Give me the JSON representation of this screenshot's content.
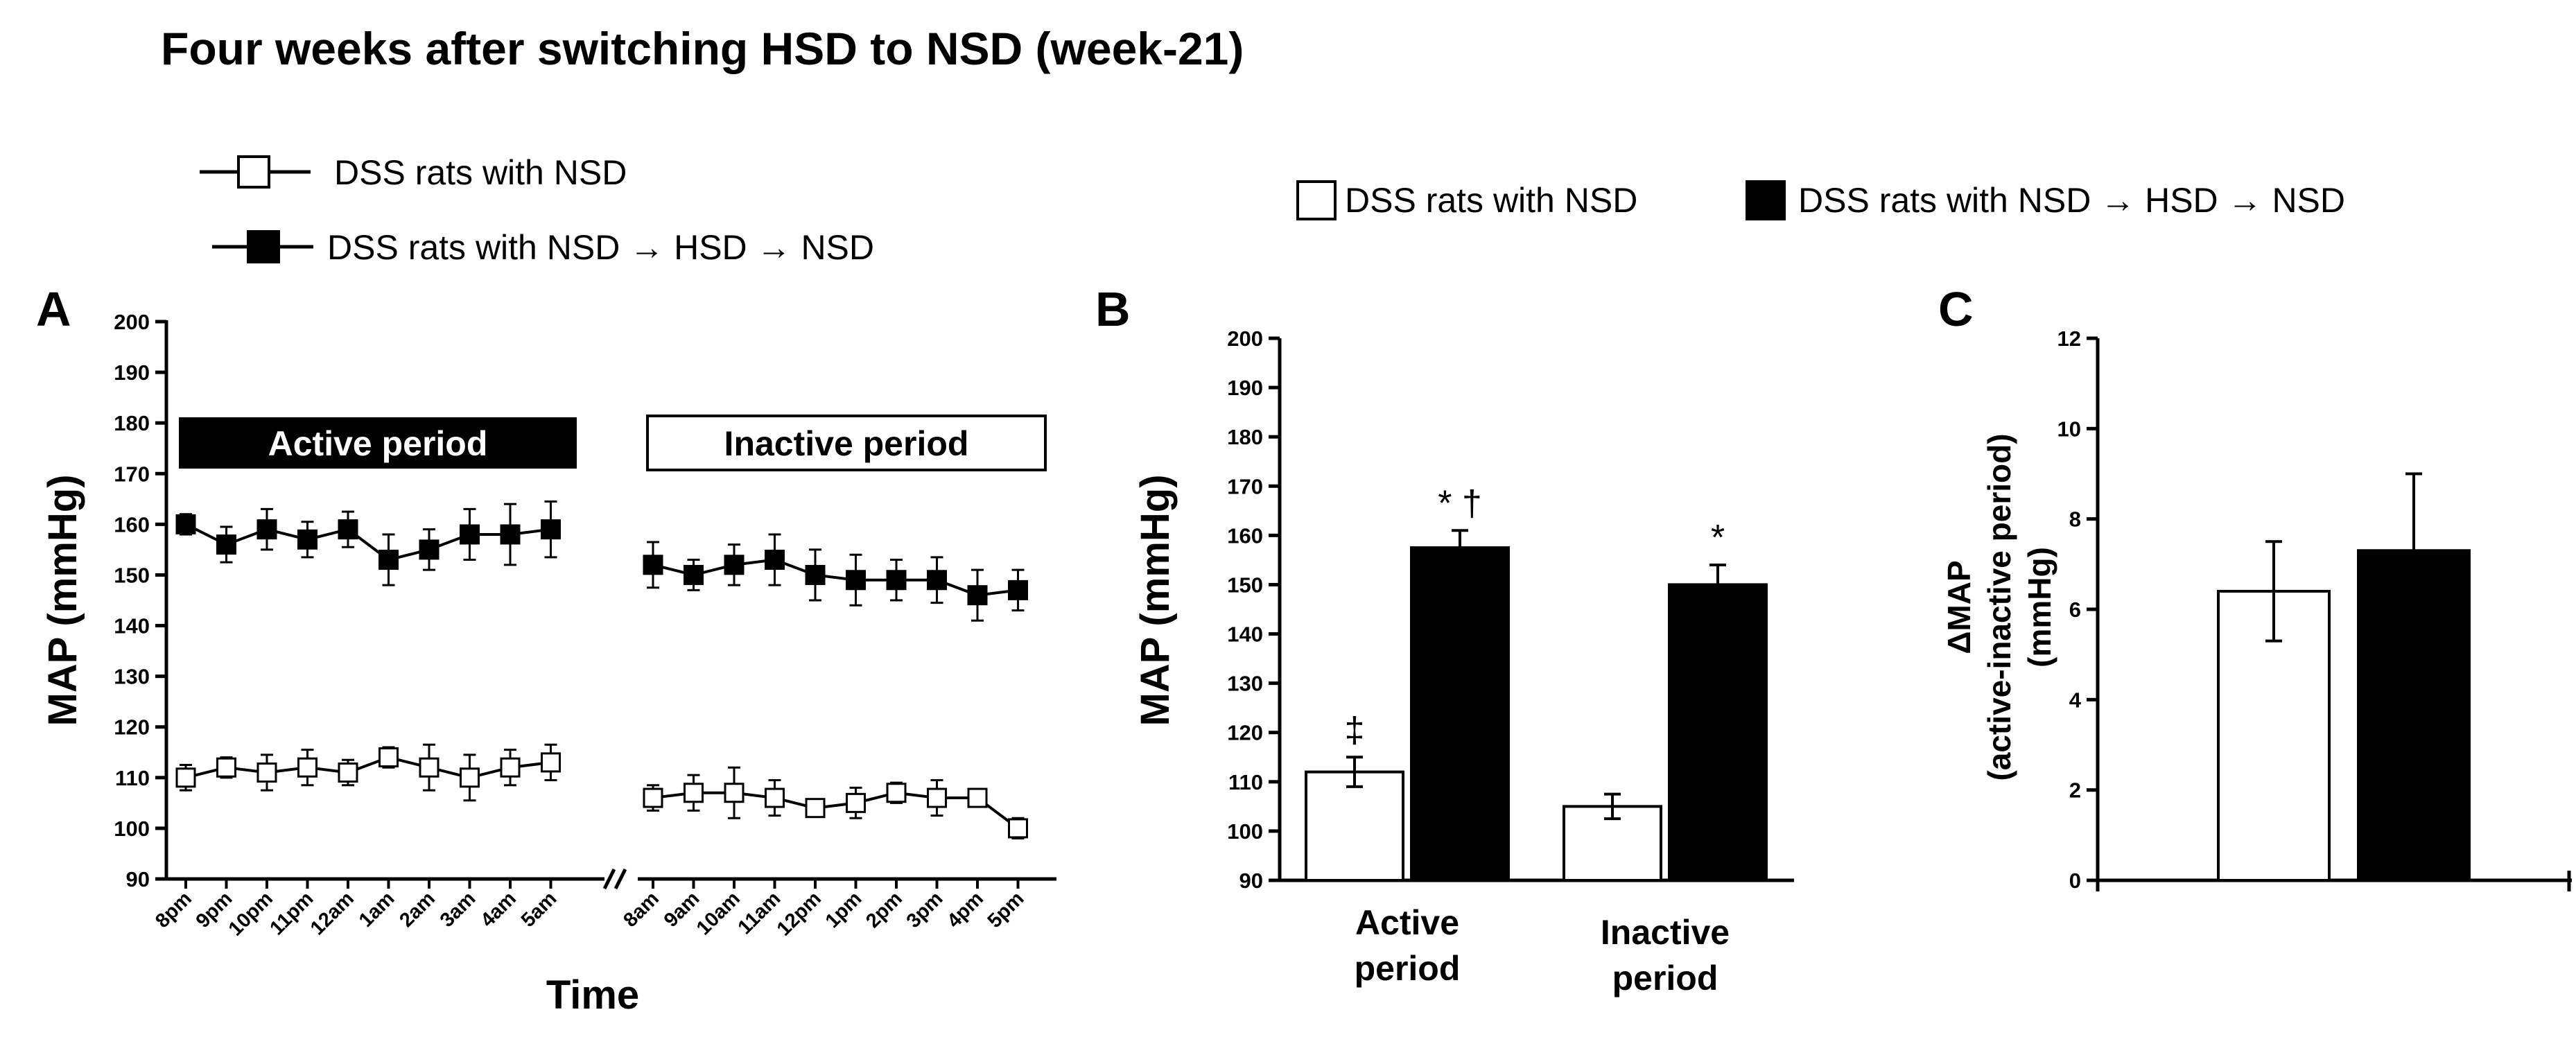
{
  "title": "Four weeks after switching HSD to NSD (week-21)",
  "colors": {
    "black": "#000000",
    "white": "#ffffff"
  },
  "legend_left": {
    "items": [
      "DSS rats with NSD",
      "DSS rats with NSD → HSD → NSD"
    ]
  },
  "legend_right": {
    "items": [
      "DSS rats with NSD",
      "DSS rats with NSD → HSD → NSD"
    ]
  },
  "chart_data": [
    {
      "panel": "A",
      "type": "line",
      "xlabel": "Time",
      "ylabel": "MAP (mmHg)",
      "ylim": [
        90,
        200
      ],
      "yticks": [
        90,
        100,
        110,
        120,
        130,
        140,
        150,
        160,
        170,
        180,
        190,
        200
      ],
      "period_labels": {
        "active": "Active period",
        "inactive": "Inactive period"
      },
      "break_mark": "//",
      "segments": [
        {
          "name": "active",
          "x": [
            "8pm",
            "9pm",
            "10pm",
            "11pm",
            "12am",
            "1am",
            "2am",
            "3am",
            "4am",
            "5am"
          ],
          "series": [
            {
              "name": "DSS rats with NSD",
              "marker": "open-square",
              "values": [
                110,
                112,
                111,
                112,
                111,
                114,
                112,
                110,
                112,
                113
              ],
              "errors": [
                2.5,
                2,
                3.5,
                3.5,
                2.5,
                2,
                4.5,
                4.5,
                3.5,
                3.5
              ]
            },
            {
              "name": "DSS rats with NSD → HSD → NSD",
              "marker": "filled-square",
              "values": [
                160,
                156,
                159,
                157,
                159,
                153,
                155,
                158,
                158,
                159
              ],
              "errors": [
                2,
                3.5,
                4,
                3.5,
                3.5,
                5,
                4,
                5,
                6,
                5.5
              ]
            }
          ]
        },
        {
          "name": "inactive",
          "x": [
            "8am",
            "9am",
            "10am",
            "11am",
            "12pm",
            "1pm",
            "2pm",
            "3pm",
            "4pm",
            "5pm"
          ],
          "series": [
            {
              "name": "DSS rats with NSD",
              "marker": "open-square",
              "values": [
                106,
                107,
                107,
                106,
                104,
                105,
                107,
                106,
                106,
                100
              ],
              "errors": [
                2.5,
                3.5,
                5,
                3.5,
                1.5,
                3,
                2,
                3.5,
                1.5,
                2
              ]
            },
            {
              "name": "DSS rats with NSD → HSD → NSD",
              "marker": "filled-square",
              "values": [
                152,
                150,
                152,
                153,
                150,
                149,
                149,
                149,
                146,
                147
              ],
              "errors": [
                4.5,
                3,
                4,
                5,
                5,
                5,
                4,
                4.5,
                5,
                4
              ]
            }
          ]
        }
      ]
    },
    {
      "panel": "B",
      "type": "bar",
      "ylabel": "MAP (mmHg)",
      "ylim": [
        90,
        200
      ],
      "yticks": [
        90,
        100,
        110,
        120,
        130,
        140,
        150,
        160,
        170,
        180,
        190,
        200
      ],
      "categories": [
        {
          "line1": "Active",
          "line2": "period"
        },
        {
          "line1": "Inactive",
          "line2": "period"
        }
      ],
      "series": [
        {
          "name": "DSS rats with NSD",
          "fill": "white",
          "values": [
            112,
            105
          ],
          "errors": [
            3,
            2.5
          ],
          "annotations": [
            "‡",
            ""
          ]
        },
        {
          "name": "DSS rats with NSD → HSD → NSD",
          "fill": "black",
          "values": [
            157.5,
            150
          ],
          "errors": [
            3.5,
            4
          ],
          "annotations": [
            "* †",
            "*"
          ]
        }
      ]
    },
    {
      "panel": "C",
      "type": "bar",
      "ylabel_line1": "ΔMAP",
      "ylabel_line2": "(active-inactive period)",
      "ylabel_line3": "(mmHg)",
      "ylim": [
        0,
        12
      ],
      "yticks": [
        0,
        2,
        4,
        6,
        8,
        10,
        12
      ],
      "series": [
        {
          "name": "DSS rats with NSD",
          "fill": "white",
          "value": 6.4,
          "error": 1.1
        },
        {
          "name": "DSS rats with NSD → HSD → NSD",
          "fill": "black",
          "value": 7.3,
          "error": 1.7
        }
      ]
    }
  ]
}
